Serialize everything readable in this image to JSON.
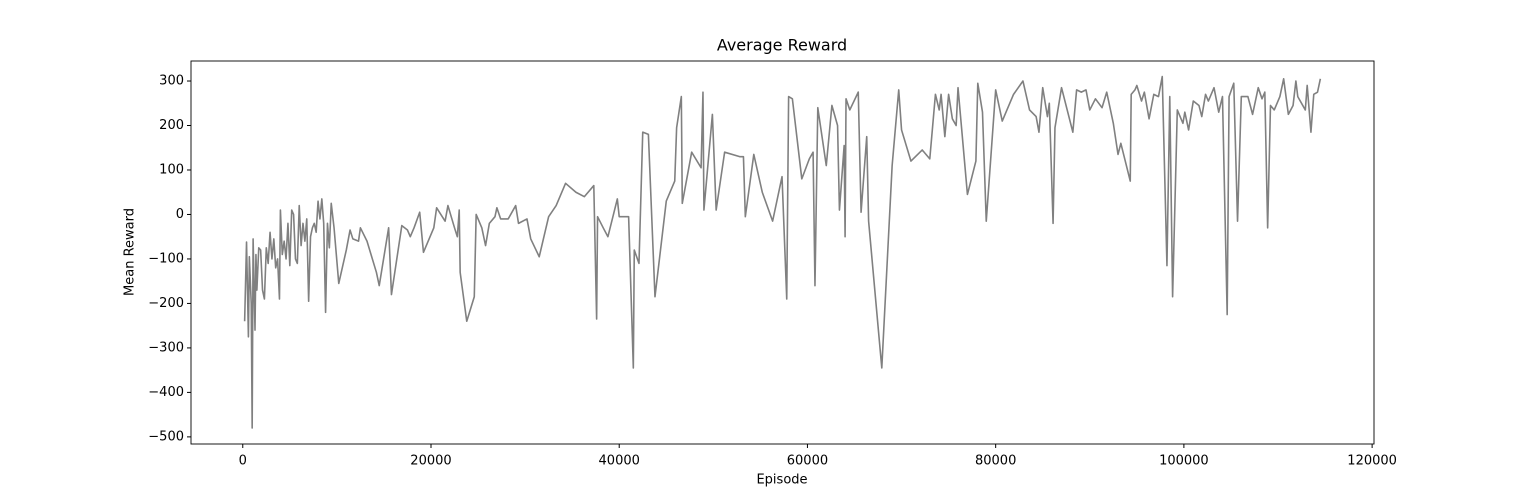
{
  "chart_data": {
    "type": "line",
    "title": "Average Reward",
    "xlabel": "Episode",
    "ylabel": "Mean Reward",
    "color": "#808080",
    "x": [
      200,
      400,
      600,
      700,
      900,
      1000,
      1100,
      1300,
      1400,
      1500,
      1700,
      1900,
      2100,
      2300,
      2500,
      2700,
      2900,
      3100,
      3300,
      3500,
      3700,
      3900,
      4000,
      4200,
      4400,
      4600,
      4800,
      5000,
      5200,
      5400,
      5600,
      5800,
      6000,
      6200,
      6400,
      6600,
      6800,
      7000,
      7200,
      7400,
      7600,
      7800,
      8000,
      8200,
      8400,
      8600,
      8800,
      9000,
      9200,
      9400,
      9700,
      10200,
      11000,
      11400,
      11700,
      12300,
      12500,
      13200,
      14200,
      14500,
      15500,
      15800,
      16900,
      17500,
      17800,
      18200,
      18800,
      19200,
      20300,
      20600,
      21500,
      21800,
      22500,
      22800,
      23000,
      23100,
      23800,
      24600,
      24800,
      25400,
      25800,
      26200,
      26800,
      27000,
      27400,
      28200,
      29000,
      29300,
      30200,
      30600,
      31500,
      32500,
      33300,
      34300,
      35400,
      36300,
      37300,
      37600,
      37700,
      38300,
      38800,
      39800,
      40000,
      41000,
      41500,
      41600,
      42100,
      42500,
      43100,
      43800,
      45000,
      45900,
      46100,
      46600,
      46700,
      47700,
      48700,
      48900,
      49000,
      49900,
      50300,
      51200,
      52800,
      53200,
      53400,
      54300,
      55200,
      56300,
      57300,
      57800,
      58000,
      58400,
      59400,
      60200,
      60600,
      60800,
      61100,
      62000,
      62600,
      63200,
      63400,
      63900,
      64000,
      64100,
      64500,
      65400,
      65700,
      66300,
      66500,
      67900,
      69000,
      69700,
      70000,
      71000,
      72200,
      73000,
      73600,
      74000,
      74200,
      74600,
      75000,
      75400,
      75800,
      76000,
      77000,
      77900,
      78100,
      78600,
      79000,
      80000,
      80700,
      81900,
      82900,
      83600,
      84300,
      84600,
      85000,
      85500,
      85700,
      86100,
      86300,
      87000,
      88200,
      88600,
      89100,
      89600,
      90000,
      90600,
      91300,
      91800,
      92500,
      93000,
      93300,
      94300,
      94400,
      94800,
      95000,
      95500,
      95800,
      96300,
      96800,
      97300,
      97700,
      98200,
      98500,
      98800,
      99300,
      99900,
      100100,
      100500,
      101000,
      101600,
      101900,
      102300,
      102600,
      103200,
      103700,
      104100,
      104600,
      104800,
      105300,
      105700,
      106100,
      106800,
      107300,
      107900,
      108300,
      108600,
      108900,
      109200,
      109600,
      110200,
      110600,
      111100,
      111600,
      111900,
      112100,
      112900,
      113100,
      113500,
      113800,
      114200,
      114500
    ],
    "values": [
      -240,
      -62,
      -275,
      -95,
      -200,
      -480,
      -55,
      -260,
      -90,
      -170,
      -75,
      -80,
      -170,
      -190,
      -75,
      -110,
      -40,
      -100,
      -55,
      -120,
      -100,
      -190,
      10,
      -90,
      -60,
      -100,
      -20,
      -115,
      10,
      0,
      -100,
      -110,
      20,
      -70,
      -20,
      -60,
      -10,
      -195,
      -50,
      -30,
      -20,
      -40,
      30,
      -10,
      35,
      -20,
      -220,
      -20,
      -75,
      25,
      -30,
      -155,
      -80,
      -35,
      -55,
      -60,
      -30,
      -60,
      -130,
      -160,
      -30,
      -180,
      -25,
      -35,
      -50,
      -30,
      5,
      -85,
      -30,
      15,
      -15,
      20,
      -30,
      -50,
      10,
      -130,
      -240,
      -185,
      0,
      -30,
      -70,
      -20,
      -5,
      15,
      -10,
      -10,
      20,
      -20,
      -10,
      -55,
      -95,
      -5,
      20,
      70,
      50,
      40,
      65,
      -235,
      -5,
      -30,
      -50,
      35,
      -5,
      -5,
      -345,
      -80,
      -110,
      185,
      180,
      -185,
      30,
      75,
      195,
      265,
      25,
      140,
      105,
      275,
      10,
      225,
      10,
      140,
      130,
      130,
      -5,
      135,
      50,
      -15,
      85,
      -190,
      265,
      260,
      80,
      125,
      140,
      -160,
      240,
      110,
      245,
      200,
      10,
      155,
      -50,
      260,
      235,
      275,
      5,
      175,
      -15,
      -345,
      110,
      280,
      190,
      120,
      145,
      125,
      270,
      235,
      270,
      175,
      270,
      215,
      200,
      285,
      45,
      120,
      295,
      230,
      -15,
      280,
      210,
      270,
      300,
      235,
      220,
      185,
      285,
      220,
      250,
      -20,
      195,
      285,
      185,
      280,
      275,
      280,
      235,
      260,
      240,
      275,
      205,
      135,
      160,
      75,
      270,
      280,
      290,
      255,
      275,
      215,
      270,
      265,
      310,
      -115,
      265,
      -185,
      235,
      205,
      230,
      190,
      255,
      245,
      220,
      270,
      255,
      285,
      230,
      265,
      -225,
      265,
      295,
      -15,
      265,
      265,
      225,
      285,
      260,
      275,
      -30,
      245,
      235,
      265,
      305,
      225,
      245,
      300,
      265,
      235,
      290,
      185,
      270,
      275,
      305
    ],
    "xlim": [
      -5500,
      120200
    ],
    "ylim": [
      -516,
      345
    ],
    "xticks": [
      0,
      20000,
      40000,
      60000,
      80000,
      100000,
      120000
    ],
    "yticks": [
      {
        "value": -500,
        "label": "−500"
      },
      {
        "value": -400,
        "label": "−400"
      },
      {
        "value": -300,
        "label": "−300"
      },
      {
        "value": -200,
        "label": "−200"
      },
      {
        "value": -100,
        "label": "−100"
      },
      0,
      100,
      200,
      300
    ]
  }
}
